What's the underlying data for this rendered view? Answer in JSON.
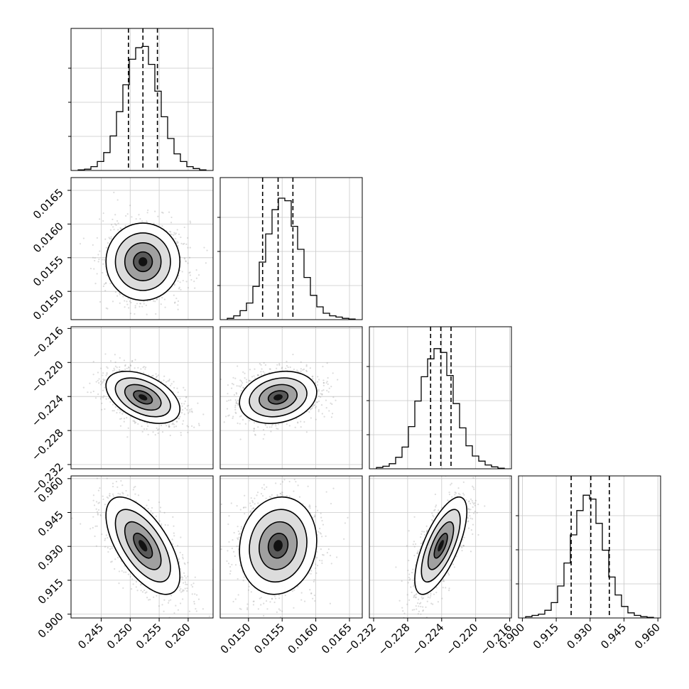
{
  "chart_data": {
    "type": "corner",
    "params": [
      {
        "median": 0.2522,
        "q16": 0.2497,
        "q84": 0.2547,
        "xlim": [
          0.2398,
          0.2643
        ],
        "ticks": [
          "0.245",
          "0.250",
          "0.255",
          "0.260"
        ],
        "tickvals": [
          0.245,
          0.25,
          0.255,
          0.26
        ]
      },
      {
        "median": 0.01544,
        "q16": 0.01521,
        "q84": 0.01566,
        "xlim": [
          0.01458,
          0.01669
        ],
        "ticks": [
          "0.0150",
          "0.0155",
          "0.0160",
          "0.0165"
        ],
        "tickvals": [
          0.015,
          0.0155,
          0.016,
          0.0165
        ]
      },
      {
        "median": -0.2241,
        "q16": -0.2253,
        "q84": -0.2229,
        "xlim": [
          -0.2325,
          -0.2158
        ],
        "ticks": [
          "−0.232",
          "−0.228",
          "−0.224",
          "−0.220",
          "−0.216"
        ],
        "tickvals": [
          -0.232,
          -0.228,
          -0.224,
          -0.22,
          -0.216
        ]
      },
      {
        "median": 0.9303,
        "q16": 0.9216,
        "q84": 0.9385,
        "xlim": [
          0.8983,
          0.9612
        ],
        "ticks": [
          "0.900",
          "0.915",
          "0.930",
          "0.945",
          "0.960"
        ],
        "tickvals": [
          0.9,
          0.915,
          0.93,
          0.945,
          0.96
        ]
      }
    ],
    "histograms": [
      [
        0.005,
        0.01,
        0.03,
        0.07,
        0.14,
        0.27,
        0.46,
        0.67,
        0.87,
        0.96,
        0.97,
        0.83,
        0.62,
        0.42,
        0.25,
        0.13,
        0.07,
        0.03,
        0.015,
        0.005
      ],
      [
        0.01,
        0.03,
        0.07,
        0.13,
        0.26,
        0.45,
        0.67,
        0.86,
        0.95,
        0.93,
        0.73,
        0.55,
        0.33,
        0.19,
        0.1,
        0.05,
        0.03,
        0.02,
        0.01,
        0.005
      ],
      [
        0.01,
        0.02,
        0.04,
        0.09,
        0.17,
        0.33,
        0.53,
        0.72,
        0.86,
        0.94,
        0.91,
        0.73,
        0.51,
        0.32,
        0.18,
        0.1,
        0.06,
        0.03,
        0.015,
        0.005
      ],
      [
        0.01,
        0.02,
        0.03,
        0.06,
        0.12,
        0.25,
        0.43,
        0.65,
        0.84,
        0.96,
        0.93,
        0.74,
        0.53,
        0.32,
        0.18,
        0.09,
        0.04,
        0.02,
        0.01,
        0.005
      ]
    ],
    "correlations": {
      "1-0": 0.0,
      "2-0": -0.45,
      "2-1": 0.2,
      "3-0": -0.62,
      "3-1": 0.1,
      "3-2": 0.7
    },
    "grid": true,
    "quantile_lines": "dashed"
  }
}
